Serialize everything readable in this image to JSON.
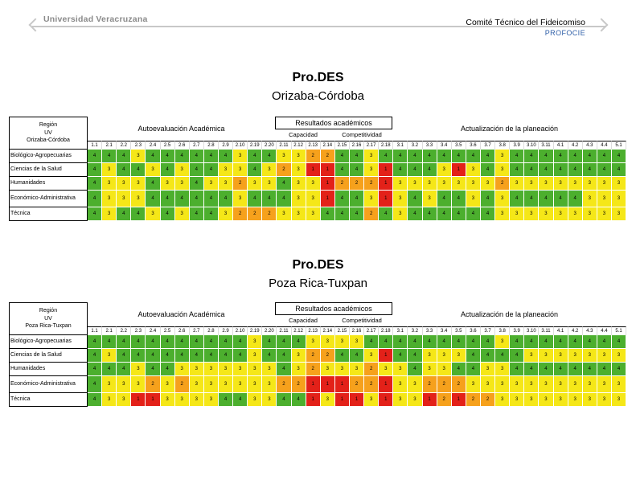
{
  "header": {
    "logo_text": "Universidad Veracruzana",
    "committee": "Comité Técnico del Fideicomiso",
    "program": "PROFOCIE"
  },
  "sections": [
    {
      "title": "Pro.DES",
      "subtitle": "Orizaba-Córdoba",
      "region_label": [
        "Región",
        "UV",
        "Orizaba-Córdoba"
      ],
      "group_labels": {
        "autoeval": "Autoevaluación Académica",
        "resultados": "Resultados académicos",
        "capacidad": "Capacidad",
        "competitividad": "Competitividad",
        "actualizacion": "Actualización de la planeación"
      },
      "columns": [
        "1.1",
        "2.1",
        "2.2",
        "2.3",
        "2.4",
        "2.5",
        "2.6",
        "2.7",
        "2.8",
        "2.9",
        "2.10",
        "2.19",
        "2.20",
        "2.11",
        "2.12",
        "2.13",
        "2.14",
        "2.15",
        "2.16",
        "2.17",
        "2.18",
        "3.1",
        "3.2",
        "3.3",
        "3.4",
        "3.5",
        "3.6",
        "3.7",
        "3.8",
        "3.9",
        "3.10",
        "3.11",
        "4.1",
        "4.2",
        "4.3",
        "4.4",
        "5.1"
      ],
      "rows": [
        {
          "label": "Biológico-Agropecuarias",
          "values": [
            4,
            4,
            4,
            3,
            4,
            4,
            4,
            4,
            4,
            4,
            3,
            4,
            4,
            3,
            3,
            2,
            2,
            4,
            4,
            3,
            4,
            4,
            4,
            4,
            4,
            4,
            4,
            4,
            3,
            4,
            4,
            4,
            4,
            4,
            4,
            4,
            4
          ]
        },
        {
          "label": "Ciencias de la Salud",
          "values": [
            4,
            3,
            4,
            4,
            3,
            4,
            3,
            4,
            4,
            3,
            3,
            4,
            3,
            2,
            3,
            1,
            1,
            4,
            4,
            3,
            1,
            4,
            4,
            4,
            3,
            1,
            3,
            4,
            3,
            4,
            4,
            4,
            4,
            4,
            4,
            4,
            4
          ]
        },
        {
          "label": "Humanidades",
          "values": [
            4,
            3,
            3,
            3,
            4,
            3,
            3,
            4,
            3,
            3,
            2,
            3,
            3,
            4,
            3,
            3,
            1,
            2,
            2,
            2,
            1,
            3,
            3,
            3,
            3,
            3,
            3,
            3,
            2,
            3,
            3,
            3,
            3,
            3,
            3,
            3,
            3
          ]
        },
        {
          "label": "Económico-Administrativa",
          "values": [
            4,
            3,
            3,
            3,
            4,
            4,
            4,
            4,
            4,
            4,
            3,
            4,
            4,
            4,
            3,
            3,
            1,
            4,
            4,
            3,
            1,
            3,
            4,
            3,
            4,
            4,
            3,
            4,
            3,
            4,
            4,
            4,
            4,
            4,
            3,
            3,
            3
          ]
        },
        {
          "label": "Técnica",
          "values": [
            4,
            3,
            4,
            4,
            3,
            4,
            3,
            4,
            4,
            3,
            2,
            2,
            2,
            3,
            3,
            3,
            4,
            4,
            4,
            2,
            4,
            3,
            4,
            4,
            4,
            4,
            4,
            4,
            3,
            3,
            3,
            3,
            3,
            3,
            3,
            3,
            3
          ]
        }
      ]
    },
    {
      "title": "Pro.DES",
      "subtitle": "Poza Rica-Tuxpan",
      "region_label": [
        "Región",
        "UV",
        "Poza Rica-Tuxpan"
      ],
      "group_labels": {
        "autoeval": "Autoevaluación Académica",
        "resultados": "Resultados académicos",
        "capacidad": "Capacidad",
        "competitividad": "Competitividad",
        "actualizacion": "Actualización de la planeación"
      },
      "columns": [
        "1.1",
        "2.1",
        "2.2",
        "2.3",
        "2.4",
        "2.5",
        "2.6",
        "2.7",
        "2.8",
        "2.9",
        "2.10",
        "2.19",
        "2.20",
        "2.11",
        "2.12",
        "2.13",
        "2.14",
        "2.15",
        "2.16",
        "2.17",
        "2.18",
        "3.1",
        "3.2",
        "3.3",
        "3.4",
        "3.5",
        "3.6",
        "3.7",
        "3.8",
        "3.9",
        "3.10",
        "3.11",
        "4.1",
        "4.2",
        "4.3",
        "4.4",
        "5.1"
      ],
      "rows": [
        {
          "label": "Biológico-Agropecuarias",
          "values": [
            4,
            4,
            4,
            4,
            4,
            4,
            4,
            4,
            4,
            4,
            4,
            3,
            4,
            4,
            4,
            3,
            3,
            3,
            3,
            4,
            4,
            4,
            4,
            4,
            4,
            4,
            4,
            4,
            3,
            4,
            4,
            4,
            4,
            4,
            4,
            4,
            4
          ]
        },
        {
          "label": "Ciencias de la Salud",
          "values": [
            4,
            3,
            4,
            4,
            4,
            4,
            4,
            4,
            4,
            4,
            4,
            3,
            4,
            4,
            3,
            2,
            2,
            4,
            4,
            3,
            1,
            4,
            4,
            3,
            3,
            3,
            4,
            4,
            4,
            4,
            3,
            3,
            3,
            3,
            3,
            3,
            3
          ]
        },
        {
          "label": "Humanidades",
          "values": [
            4,
            4,
            4,
            3,
            4,
            4,
            3,
            3,
            3,
            3,
            3,
            3,
            3,
            4,
            3,
            2,
            3,
            3,
            3,
            2,
            3,
            3,
            4,
            3,
            3,
            4,
            4,
            3,
            3,
            4,
            4,
            4,
            4,
            4,
            4,
            4,
            4
          ]
        },
        {
          "label": "Económico-Administrativa",
          "values": [
            4,
            3,
            3,
            3,
            2,
            3,
            2,
            3,
            3,
            3,
            3,
            3,
            3,
            2,
            2,
            1,
            1,
            1,
            2,
            2,
            1,
            3,
            3,
            2,
            2,
            2,
            3,
            3,
            3,
            3,
            3,
            3,
            3,
            3,
            3,
            3,
            3
          ]
        },
        {
          "label": "Técnica",
          "values": [
            4,
            3,
            3,
            1,
            1,
            3,
            3,
            3,
            3,
            4,
            4,
            3,
            3,
            4,
            4,
            1,
            3,
            1,
            1,
            3,
            1,
            3,
            3,
            1,
            2,
            1,
            2,
            2,
            3,
            3,
            3,
            3,
            3,
            3,
            3,
            3,
            3
          ]
        }
      ]
    }
  ]
}
